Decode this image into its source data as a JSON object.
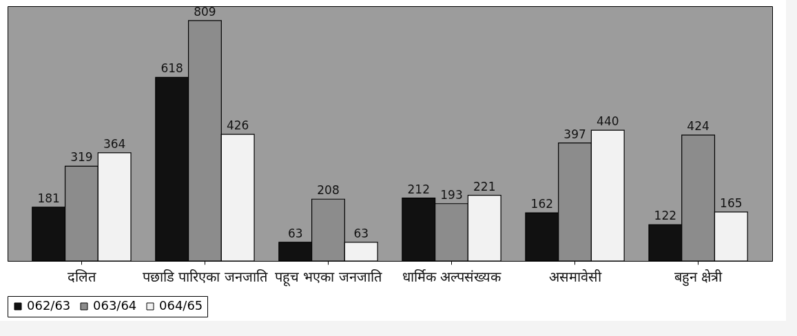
{
  "chart_data": {
    "type": "bar",
    "categories": [
      "दलित",
      "पछाडि पारिएका जनजाति",
      "पहूच भएका जनजाति",
      "धार्मिक अल्पसंख्यक",
      "असमावेसी",
      "बहुन क्षेत्री"
    ],
    "series": [
      {
        "name": "062/63",
        "color": "#111111",
        "values": [
          181,
          618,
          63,
          212,
          162,
          122
        ]
      },
      {
        "name": "063/64",
        "color": "#8c8c8c",
        "values": [
          319,
          809,
          208,
          193,
          397,
          424
        ]
      },
      {
        "name": "064/65",
        "color": "#f2f2f2",
        "values": [
          364,
          426,
          63,
          221,
          440,
          165
        ]
      }
    ],
    "data_labels": true,
    "legend": "bottom",
    "grid": false
  }
}
